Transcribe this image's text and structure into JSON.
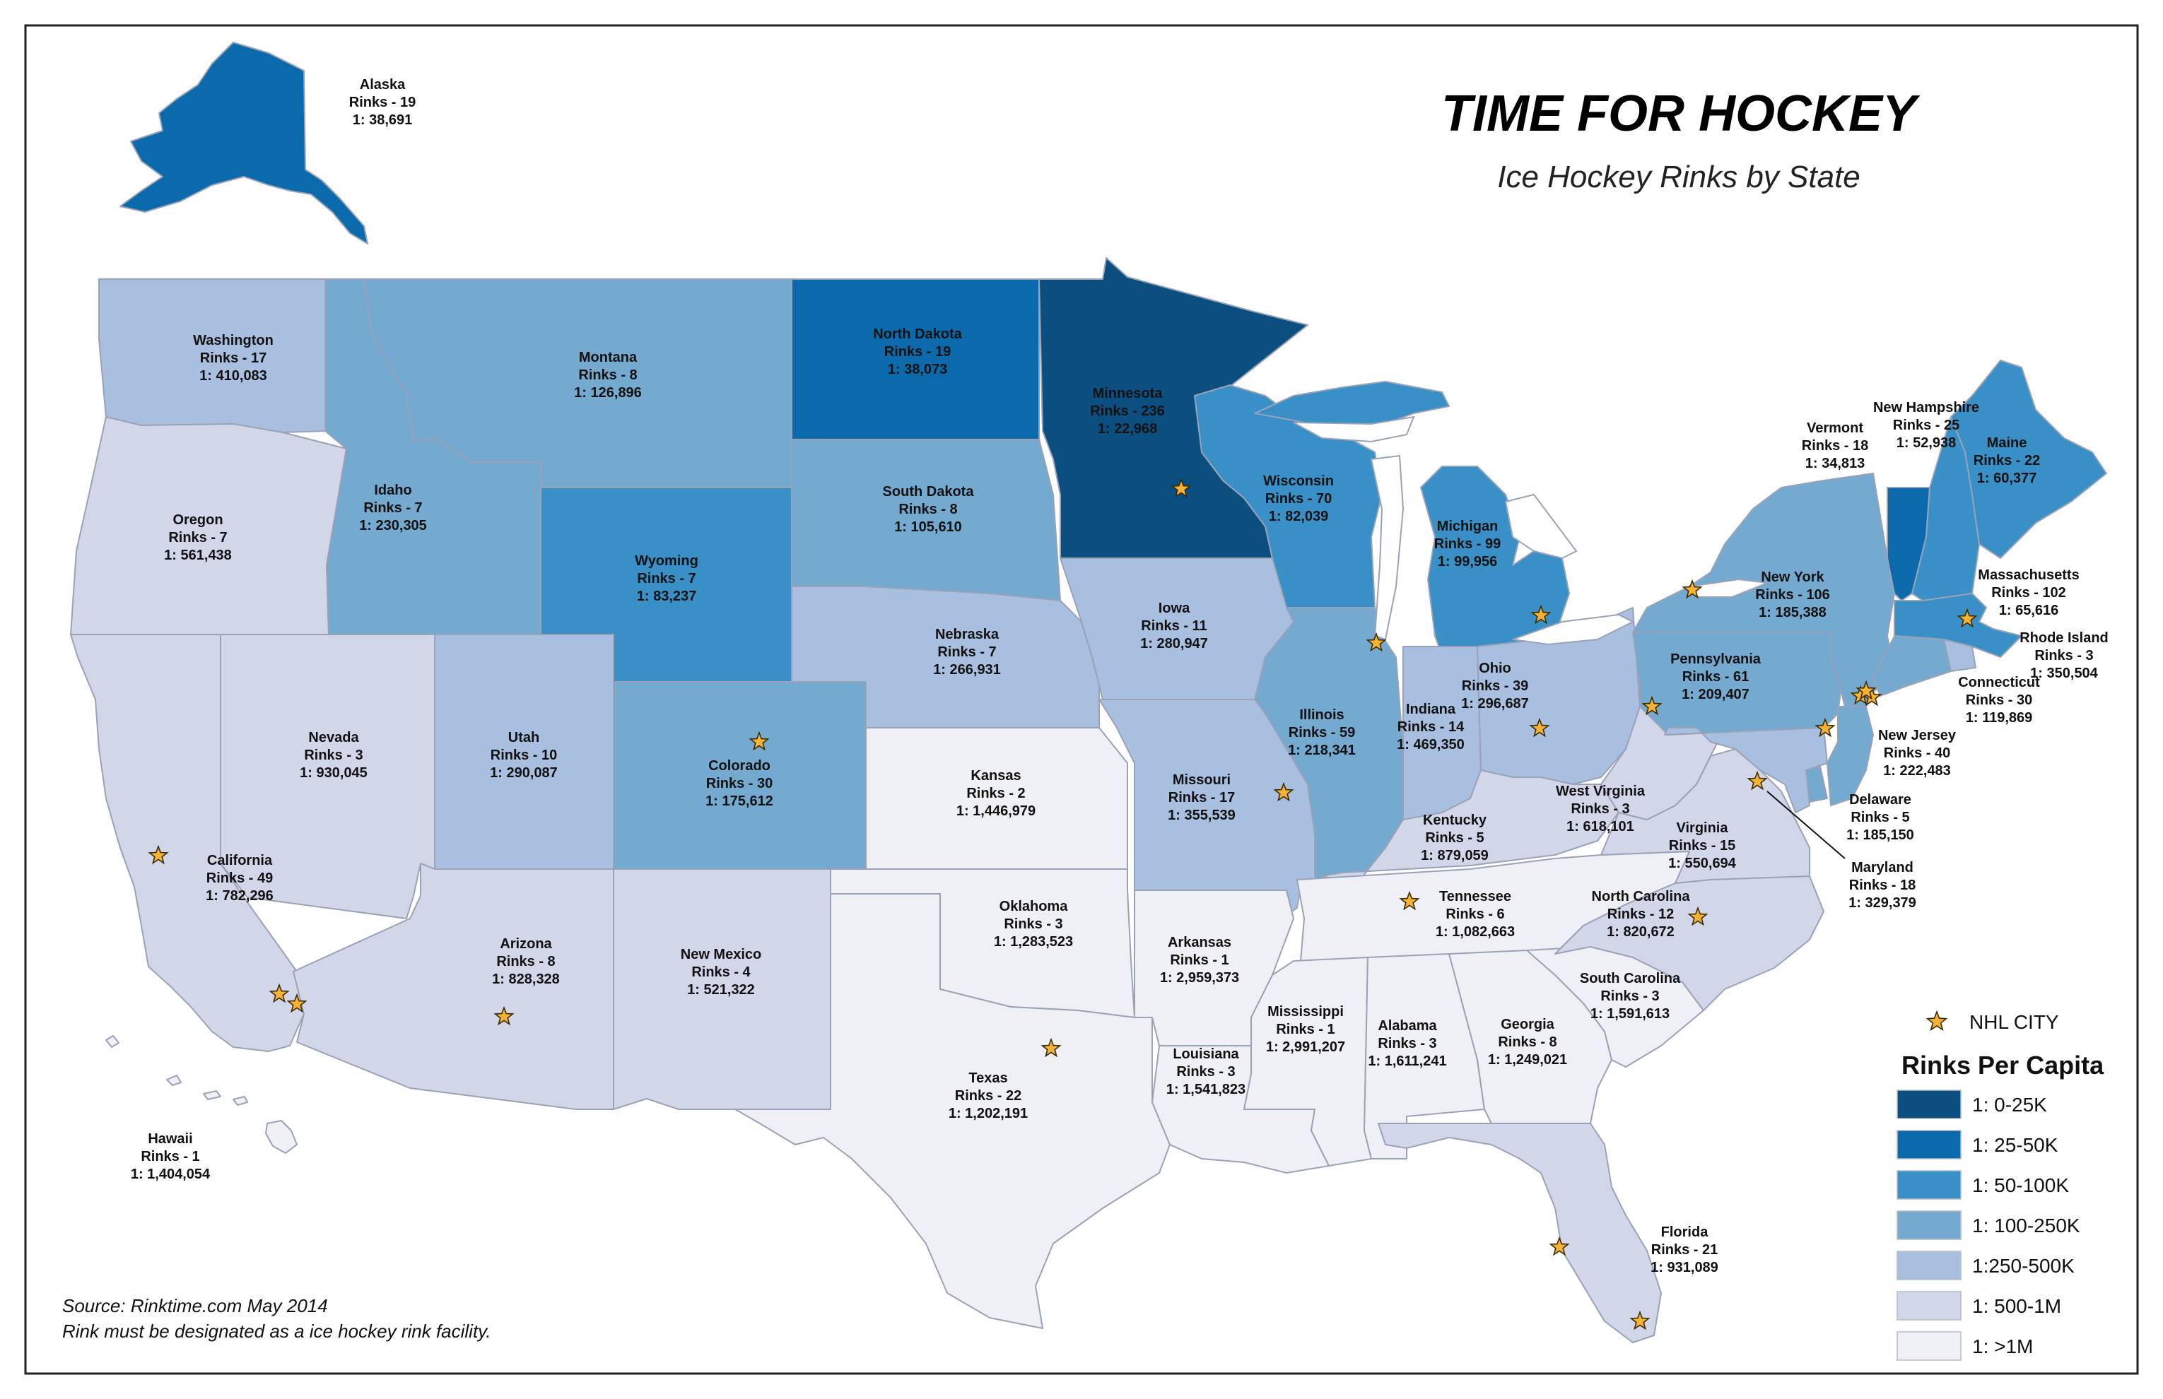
{
  "title": "TIME FOR HOCKEY",
  "subtitle": "Ice Hockey Rinks by State",
  "source_lines": [
    "Source:  Rinktime.com May 2014",
    "Rink must be designated as a ice hockey rink facility."
  ],
  "legend": {
    "nhl_city_label": "NHL CITY",
    "title": "Rinks Per Capita",
    "classes": [
      {
        "label": "1: 0-25K",
        "color": "#0b4f80"
      },
      {
        "label": "1: 25-50K",
        "color": "#0a6aac"
      },
      {
        "label": "1: 50-100K",
        "color": "#3990c6"
      },
      {
        "label": "1: 100-250K",
        "color": "#74a9d0"
      },
      {
        "label": "1:250-500K",
        "color": "#a8bfe0"
      },
      {
        "label": "1: 500-1M",
        "color": "#d2d6e9"
      },
      {
        "label": "1: >1M",
        "color": "#efeff6"
      }
    ]
  },
  "states": [
    {
      "id": "alaska",
      "name": "Alaska",
      "rinks": "Rinks - 19",
      "ratio": "1: 38,691",
      "cls": 1
    },
    {
      "id": "hawaii",
      "name": "Hawaii",
      "rinks": "Rinks - 1",
      "ratio": "1: 1,404,054",
      "cls": 6
    },
    {
      "id": "washington",
      "name": "Washington",
      "rinks": "Rinks - 17",
      "ratio": "1: 410,083",
      "cls": 4
    },
    {
      "id": "oregon",
      "name": "Oregon",
      "rinks": "Rinks - 7",
      "ratio": "1: 561,438",
      "cls": 5
    },
    {
      "id": "california",
      "name": "California",
      "rinks": "Rinks - 49",
      "ratio": "1: 782,296",
      "cls": 5
    },
    {
      "id": "nevada",
      "name": "Nevada",
      "rinks": "Rinks - 3",
      "ratio": "1: 930,045",
      "cls": 5
    },
    {
      "id": "idaho",
      "name": "Idaho",
      "rinks": "Rinks - 7",
      "ratio": "1: 230,305",
      "cls": 3
    },
    {
      "id": "montana",
      "name": "Montana",
      "rinks": "Rinks - 8",
      "ratio": "1: 126,896",
      "cls": 3
    },
    {
      "id": "wyoming",
      "name": "Wyoming",
      "rinks": "Rinks - 7",
      "ratio": "1: 83,237",
      "cls": 2
    },
    {
      "id": "utah",
      "name": "Utah",
      "rinks": "Rinks - 10",
      "ratio": "1: 290,087",
      "cls": 4
    },
    {
      "id": "colorado",
      "name": "Colorado",
      "rinks": "Rinks - 30",
      "ratio": "1: 175,612",
      "cls": 3
    },
    {
      "id": "arizona",
      "name": "Arizona",
      "rinks": "Rinks - 8",
      "ratio": "1: 828,328",
      "cls": 5
    },
    {
      "id": "new-mexico",
      "name": "New Mexico",
      "rinks": "Rinks - 4",
      "ratio": "1: 521,322",
      "cls": 5
    },
    {
      "id": "north-dakota",
      "name": "North Dakota",
      "rinks": "Rinks - 19",
      "ratio": "1: 38,073",
      "cls": 1
    },
    {
      "id": "south-dakota",
      "name": "South Dakota",
      "rinks": "Rinks - 8",
      "ratio": "1: 105,610",
      "cls": 3
    },
    {
      "id": "nebraska",
      "name": "Nebraska",
      "rinks": "Rinks - 7",
      "ratio": "1: 266,931",
      "cls": 4
    },
    {
      "id": "kansas",
      "name": "Kansas",
      "rinks": "Rinks - 2",
      "ratio": "1: 1,446,979",
      "cls": 6
    },
    {
      "id": "oklahoma",
      "name": "Oklahoma",
      "rinks": "Rinks - 3",
      "ratio": "1: 1,283,523",
      "cls": 6
    },
    {
      "id": "texas",
      "name": "Texas",
      "rinks": "Rinks - 22",
      "ratio": "1: 1,202,191",
      "cls": 6
    },
    {
      "id": "minnesota",
      "name": "Minnesota",
      "rinks": "Rinks - 236",
      "ratio": "1: 22,968",
      "cls": 0
    },
    {
      "id": "iowa",
      "name": "Iowa",
      "rinks": "Rinks - 11",
      "ratio": "1: 280,947",
      "cls": 4
    },
    {
      "id": "missouri",
      "name": "Missouri",
      "rinks": "Rinks - 17",
      "ratio": "1: 355,539",
      "cls": 4
    },
    {
      "id": "arkansas",
      "name": "Arkansas",
      "rinks": "Rinks - 1",
      "ratio": "1: 2,959,373",
      "cls": 6
    },
    {
      "id": "louisiana",
      "name": "Louisiana",
      "rinks": "Rinks - 3",
      "ratio": "1: 1,541,823",
      "cls": 6
    },
    {
      "id": "wisconsin",
      "name": "Wisconsin",
      "rinks": "Rinks - 70",
      "ratio": "1: 82,039",
      "cls": 2
    },
    {
      "id": "illinois",
      "name": "Illinois",
      "rinks": "Rinks - 59",
      "ratio": "1: 218,341",
      "cls": 3
    },
    {
      "id": "michigan",
      "name": "Michigan",
      "rinks": "Rinks - 99",
      "ratio": "1: 99,956",
      "cls": 2
    },
    {
      "id": "indiana",
      "name": "Indiana",
      "rinks": "Rinks - 14",
      "ratio": "1: 469,350",
      "cls": 4
    },
    {
      "id": "ohio",
      "name": "Ohio",
      "rinks": "Rinks - 39",
      "ratio": "1: 296,687",
      "cls": 4
    },
    {
      "id": "kentucky",
      "name": "Kentucky",
      "rinks": "Rinks - 5",
      "ratio": "1: 879,059",
      "cls": 5
    },
    {
      "id": "tennessee",
      "name": "Tennessee",
      "rinks": "Rinks - 6",
      "ratio": "1: 1,082,663",
      "cls": 6
    },
    {
      "id": "mississippi",
      "name": "Mississippi",
      "rinks": "Rinks - 1",
      "ratio": "1: 2,991,207",
      "cls": 6
    },
    {
      "id": "alabama",
      "name": "Alabama",
      "rinks": "Rinks - 3",
      "ratio": "1: 1,611,241",
      "cls": 6
    },
    {
      "id": "georgia",
      "name": "Georgia",
      "rinks": "Rinks - 8",
      "ratio": "1: 1,249,021",
      "cls": 6
    },
    {
      "id": "florida",
      "name": "Florida",
      "rinks": "Rinks - 21",
      "ratio": "1: 931,089",
      "cls": 5
    },
    {
      "id": "south-carolina",
      "name": "South Carolina",
      "rinks": "Rinks - 3",
      "ratio": "1: 1,591,613",
      "cls": 6
    },
    {
      "id": "north-carolina",
      "name": "North Carolina",
      "rinks": "Rinks - 12",
      "ratio": "1: 820,672",
      "cls": 5
    },
    {
      "id": "virginia",
      "name": "Virginia",
      "rinks": "Rinks - 15",
      "ratio": "1: 550,694",
      "cls": 5
    },
    {
      "id": "west-virginia",
      "name": "West Virginia",
      "rinks": "Rinks - 3",
      "ratio": "1: 618,101",
      "cls": 5
    },
    {
      "id": "pennsylvania",
      "name": "Pennsylvania",
      "rinks": "Rinks - 61",
      "ratio": "1: 209,407",
      "cls": 3
    },
    {
      "id": "new-york",
      "name": "New York",
      "rinks": "Rinks - 106",
      "ratio": "1: 185,388",
      "cls": 3
    },
    {
      "id": "vermont",
      "name": "Vermont",
      "rinks": "Rinks - 18",
      "ratio": "1: 34,813",
      "cls": 1
    },
    {
      "id": "new-hampshire",
      "name": "New Hampshire",
      "rinks": "Rinks - 25",
      "ratio": "1: 52,938",
      "cls": 2
    },
    {
      "id": "maine",
      "name": "Maine",
      "rinks": "Rinks - 22",
      "ratio": "1: 60,377",
      "cls": 2
    },
    {
      "id": "massachusetts",
      "name": "Massachusetts",
      "rinks": "Rinks - 102",
      "ratio": "1: 65,616",
      "cls": 2
    },
    {
      "id": "rhode-island",
      "name": "Rhode Island",
      "rinks": "Rinks - 3",
      "ratio": "1: 350,504",
      "cls": 4
    },
    {
      "id": "connecticut",
      "name": "Connecticut",
      "rinks": "Rinks - 30",
      "ratio": "1: 119,869",
      "cls": 3
    },
    {
      "id": "new-jersey",
      "name": "New Jersey",
      "rinks": "Rinks - 40",
      "ratio": "1: 222,483",
      "cls": 3
    },
    {
      "id": "delaware",
      "name": "Delaware",
      "rinks": "Rinks - 5",
      "ratio": "1: 185,150",
      "cls": 3
    },
    {
      "id": "maryland",
      "name": "Maryland",
      "rinks": "Rinks - 18",
      "ratio": "1: 329,379",
      "cls": 4
    }
  ]
}
